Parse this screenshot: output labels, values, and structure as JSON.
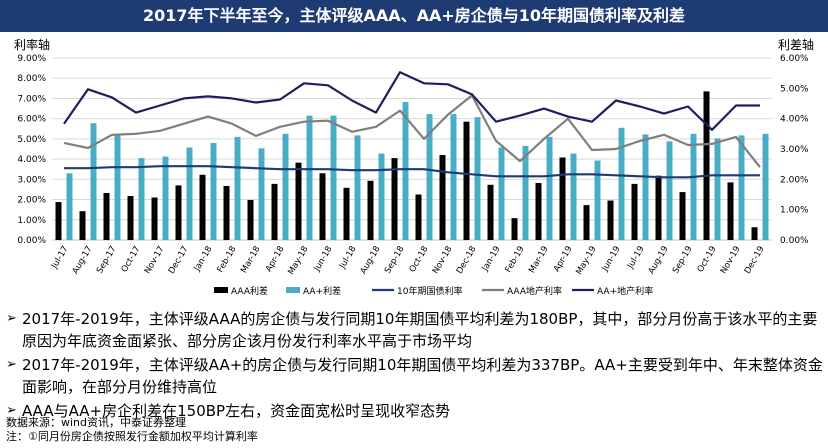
{
  "header": {
    "title": "2017年下半年至今，主体评级AAA、AA+房企债与10年期国债利率及利差"
  },
  "chart_data": {
    "type": "bar",
    "y_left_label": "利率轴",
    "y_right_label": "利差轴",
    "ylim_left": [
      0,
      9
    ],
    "ylim_right": [
      0,
      6
    ],
    "left_ticks": [
      "0.00%",
      "1.00%",
      "2.00%",
      "3.00%",
      "4.00%",
      "5.00%",
      "6.00%",
      "7.00%",
      "8.00%",
      "9.00%"
    ],
    "right_ticks": [
      "0.00%",
      "1.00%",
      "2.00%",
      "3.00%",
      "4.00%",
      "5.00%",
      "6.00%"
    ],
    "categories": [
      "Jul-17",
      "Aug-17",
      "Sep-17",
      "Oct-17",
      "Nov-17",
      "Dec-17",
      "Jan-18",
      "Feb-18",
      "Mar-18",
      "Apr-18",
      "May-18",
      "Jun-18",
      "Jul-18",
      "Aug-18",
      "Sep-18",
      "Oct-18",
      "Nov-18",
      "Dec-18",
      "Jan-19",
      "Feb-19",
      "Mar-19",
      "Apr-19",
      "May-19",
      "Jun-19",
      "Jul-19",
      "Aug-19",
      "Sep-19",
      "Oct-19",
      "Nov-19",
      "Dec-19"
    ],
    "series": [
      {
        "name": "AAA利差",
        "axis": "right",
        "kind": "bar",
        "color": "#000000",
        "values": [
          1.25,
          0.95,
          1.55,
          1.45,
          1.4,
          1.8,
          2.15,
          1.78,
          1.32,
          1.85,
          2.55,
          2.2,
          1.72,
          1.95,
          2.7,
          1.5,
          2.8,
          3.9,
          1.82,
          0.72,
          1.88,
          2.72,
          1.15,
          1.3,
          1.85,
          2.12,
          1.58,
          4.9,
          1.9,
          0.42
        ]
      },
      {
        "name": "AA+利差",
        "axis": "right",
        "kind": "bar",
        "color": "#4bacc6",
        "values": [
          2.2,
          3.85,
          3.45,
          2.7,
          2.75,
          3.05,
          3.2,
          3.4,
          3.02,
          3.5,
          4.1,
          4.1,
          3.45,
          2.85,
          4.55,
          4.15,
          4.15,
          4.05,
          3.05,
          3.1,
          3.4,
          2.85,
          2.62,
          3.7,
          3.48,
          3.25,
          3.5,
          3.35,
          3.45,
          3.5
        ]
      },
      {
        "name": "10年期国债利率",
        "axis": "left",
        "kind": "line",
        "color": "#1f3b74",
        "values": [
          3.55,
          3.55,
          3.6,
          3.6,
          3.65,
          3.65,
          3.65,
          3.6,
          3.55,
          3.5,
          3.5,
          3.5,
          3.45,
          3.45,
          3.5,
          3.5,
          3.35,
          3.25,
          3.15,
          3.15,
          3.15,
          3.25,
          3.25,
          3.2,
          3.15,
          3.1,
          3.1,
          3.2,
          3.2,
          3.2
        ]
      },
      {
        "name": "AAA地产利率",
        "axis": "left",
        "kind": "line",
        "color": "#7f7f7f",
        "values": [
          4.8,
          4.55,
          5.2,
          5.25,
          5.4,
          5.75,
          6.1,
          5.75,
          5.15,
          5.6,
          5.85,
          5.9,
          5.35,
          5.6,
          6.4,
          5.0,
          6.2,
          7.15,
          4.9,
          3.9,
          5.0,
          6.0,
          4.45,
          4.5,
          4.9,
          5.2,
          4.7,
          4.75,
          5.1,
          3.6
        ]
      },
      {
        "name": "AA+地产利率",
        "axis": "left",
        "kind": "line",
        "color": "#1f1f5f",
        "values": [
          5.75,
          7.45,
          7.05,
          6.3,
          6.65,
          7.0,
          7.1,
          7.0,
          6.8,
          6.95,
          7.75,
          7.65,
          6.9,
          6.3,
          8.3,
          7.75,
          7.7,
          7.2,
          5.85,
          6.15,
          6.5,
          6.1,
          5.85,
          6.9,
          6.6,
          6.25,
          6.6,
          5.45,
          6.65,
          6.65
        ]
      }
    ]
  },
  "bullets": [
    "2017年-2019年，主体评级AAA的房企债与发行同期10年期国债平均利差为180BP，其中，部分月份高于该水平的主要原因为年底资金面紧张、部分房企该月份发行利率水平高于市场平均",
    "2017年-2019年，主体评级AA+的房企债与发行同期10年期国债平均利差为337BP。AA+主要受到年中、年末整体资金面影响，在部分月份维持高位",
    "AAA与AA+房企利差在150BP左右，资金面宽松时呈现收窄态势"
  ],
  "bullet_marker": "➢",
  "source": {
    "line1": "数据来源：wind资讯，中泰证券整理",
    "line2": "注：①同月份房企债按照发行金额加权平均计算利率"
  }
}
